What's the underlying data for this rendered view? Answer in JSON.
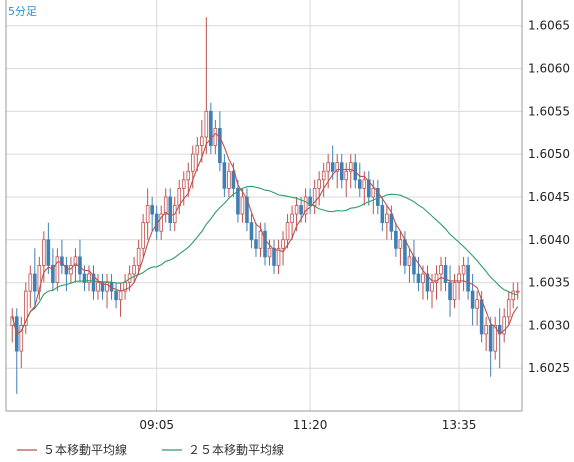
{
  "timeframe_label": "5分足",
  "colors": {
    "up": "#c0504d",
    "down": "#3f7fb5",
    "ma5": "#c0504d",
    "ma25": "#2e9e6a",
    "grid": "#d9d9d9",
    "axis": "#999999"
  },
  "chart_data": {
    "type": "candlestick",
    "ylim": [
      1.602,
      1.6068
    ],
    "yticks": [
      "1.6065",
      "1.6060",
      "1.6055",
      "1.6050",
      "1.6045",
      "1.6040",
      "1.6035",
      "1.6030",
      "1.6025"
    ],
    "xticks": [
      {
        "index": 32,
        "label": "09:05"
      },
      {
        "index": 66,
        "label": "11:20"
      },
      {
        "index": 99,
        "label": "13:35"
      }
    ],
    "candles": [
      [
        1.603,
        1.6032,
        1.6028,
        1.6031
      ],
      [
        1.6031,
        1.6032,
        1.6022,
        1.6027
      ],
      [
        1.6027,
        1.6031,
        1.6025,
        1.603
      ],
      [
        1.603,
        1.6035,
        1.6029,
        1.6034
      ],
      [
        1.6034,
        1.6037,
        1.6032,
        1.6036
      ],
      [
        1.6036,
        1.6039,
        1.6032,
        1.6034
      ],
      [
        1.6034,
        1.6038,
        1.6033,
        1.6037
      ],
      [
        1.6037,
        1.6041,
        1.6035,
        1.604
      ],
      [
        1.604,
        1.6042,
        1.6036,
        1.6037
      ],
      [
        1.6037,
        1.6039,
        1.6034,
        1.6035
      ],
      [
        1.6035,
        1.6039,
        1.6034,
        1.6038
      ],
      [
        1.6038,
        1.604,
        1.6036,
        1.6037
      ],
      [
        1.6037,
        1.6038,
        1.6034,
        1.6036
      ],
      [
        1.6036,
        1.6038,
        1.6035,
        1.6037
      ],
      [
        1.6037,
        1.6039,
        1.6035,
        1.6038
      ],
      [
        1.6038,
        1.604,
        1.6035,
        1.6036
      ],
      [
        1.6036,
        1.6037,
        1.6034,
        1.6035
      ],
      [
        1.6035,
        1.6037,
        1.6034,
        1.6036
      ],
      [
        1.6036,
        1.6037,
        1.6033,
        1.6034
      ],
      [
        1.6034,
        1.6036,
        1.6033,
        1.6035
      ],
      [
        1.6035,
        1.6036,
        1.6033,
        1.6034
      ],
      [
        1.6034,
        1.6036,
        1.6032,
        1.6035
      ],
      [
        1.6035,
        1.6036,
        1.6033,
        1.6034
      ],
      [
        1.6034,
        1.6035,
        1.6032,
        1.6033
      ],
      [
        1.6033,
        1.6035,
        1.6031,
        1.6034
      ],
      [
        1.6034,
        1.6036,
        1.6033,
        1.6035
      ],
      [
        1.6035,
        1.6037,
        1.6034,
        1.6036
      ],
      [
        1.6036,
        1.6038,
        1.6035,
        1.6037
      ],
      [
        1.6037,
        1.604,
        1.6036,
        1.6039
      ],
      [
        1.6039,
        1.6043,
        1.6038,
        1.6042
      ],
      [
        1.6042,
        1.6046,
        1.604,
        1.6044
      ],
      [
        1.6044,
        1.6045,
        1.6041,
        1.6043
      ],
      [
        1.6043,
        1.6044,
        1.604,
        1.6041
      ],
      [
        1.6041,
        1.6044,
        1.604,
        1.6043
      ],
      [
        1.6043,
        1.6046,
        1.6042,
        1.6045
      ],
      [
        1.6045,
        1.6046,
        1.6041,
        1.6042
      ],
      [
        1.6042,
        1.6045,
        1.6041,
        1.6044
      ],
      [
        1.6044,
        1.6047,
        1.6043,
        1.6046
      ],
      [
        1.6046,
        1.6048,
        1.6044,
        1.6047
      ],
      [
        1.6047,
        1.6049,
        1.6045,
        1.6048
      ],
      [
        1.6048,
        1.6051,
        1.6046,
        1.605
      ],
      [
        1.605,
        1.6052,
        1.6048,
        1.6051
      ],
      [
        1.6051,
        1.6054,
        1.6049,
        1.6052
      ],
      [
        1.6052,
        1.6066,
        1.605,
        1.6055
      ],
      [
        1.6055,
        1.6056,
        1.605,
        1.6051
      ],
      [
        1.6051,
        1.6054,
        1.605,
        1.6053
      ],
      [
        1.6053,
        1.6055,
        1.6048,
        1.6049
      ],
      [
        1.6049,
        1.605,
        1.6045,
        1.6046
      ],
      [
        1.6046,
        1.6049,
        1.6045,
        1.6048
      ],
      [
        1.6048,
        1.6049,
        1.6045,
        1.6046
      ],
      [
        1.6046,
        1.6047,
        1.6042,
        1.6043
      ],
      [
        1.6043,
        1.6046,
        1.6042,
        1.6045
      ],
      [
        1.6045,
        1.6046,
        1.6041,
        1.6042
      ],
      [
        1.6042,
        1.6043,
        1.6039,
        1.604
      ],
      [
        1.604,
        1.6042,
        1.6038,
        1.6039
      ],
      [
        1.6039,
        1.6042,
        1.6038,
        1.6041
      ],
      [
        1.6041,
        1.6042,
        1.6037,
        1.6038
      ],
      [
        1.6038,
        1.604,
        1.6037,
        1.6039
      ],
      [
        1.6039,
        1.604,
        1.6036,
        1.6037
      ],
      [
        1.6037,
        1.604,
        1.6036,
        1.6039
      ],
      [
        1.6039,
        1.6041,
        1.6037,
        1.604
      ],
      [
        1.604,
        1.6043,
        1.6039,
        1.6042
      ],
      [
        1.6042,
        1.6044,
        1.604,
        1.6043
      ],
      [
        1.6043,
        1.6045,
        1.6041,
        1.6044
      ],
      [
        1.6044,
        1.6045,
        1.6042,
        1.6043
      ],
      [
        1.6043,
        1.6046,
        1.6042,
        1.6045
      ],
      [
        1.6045,
        1.6046,
        1.6043,
        1.6044
      ],
      [
        1.6044,
        1.6047,
        1.6043,
        1.6046
      ],
      [
        1.6046,
        1.6048,
        1.6044,
        1.6047
      ],
      [
        1.6047,
        1.6049,
        1.6045,
        1.6048
      ],
      [
        1.6048,
        1.605,
        1.6046,
        1.6049
      ],
      [
        1.6049,
        1.6051,
        1.6047,
        1.6048
      ],
      [
        1.6048,
        1.605,
        1.6046,
        1.6049
      ],
      [
        1.6049,
        1.605,
        1.6046,
        1.6047
      ],
      [
        1.6047,
        1.6049,
        1.6045,
        1.6048
      ],
      [
        1.6048,
        1.605,
        1.6046,
        1.6049
      ],
      [
        1.6049,
        1.605,
        1.6046,
        1.6047
      ],
      [
        1.6047,
        1.6049,
        1.6045,
        1.6046
      ],
      [
        1.6046,
        1.6048,
        1.6044,
        1.6047
      ],
      [
        1.6047,
        1.6048,
        1.6044,
        1.6045
      ],
      [
        1.6045,
        1.6047,
        1.6043,
        1.6046
      ],
      [
        1.6046,
        1.6047,
        1.6043,
        1.6044
      ],
      [
        1.6044,
        1.6045,
        1.6041,
        1.6042
      ],
      [
        1.6042,
        1.6044,
        1.604,
        1.6043
      ],
      [
        1.6043,
        1.6044,
        1.604,
        1.6041
      ],
      [
        1.6041,
        1.6042,
        1.6038,
        1.6039
      ],
      [
        1.6039,
        1.6041,
        1.6037,
        1.604
      ],
      [
        1.604,
        1.6041,
        1.6036,
        1.6037
      ],
      [
        1.6037,
        1.6039,
        1.6035,
        1.6038
      ],
      [
        1.6038,
        1.604,
        1.6035,
        1.6036
      ],
      [
        1.6036,
        1.6038,
        1.6034,
        1.6035
      ],
      [
        1.6035,
        1.6037,
        1.6033,
        1.6036
      ],
      [
        1.6036,
        1.6037,
        1.6033,
        1.6034
      ],
      [
        1.6034,
        1.6036,
        1.6032,
        1.6035
      ],
      [
        1.6035,
        1.6037,
        1.6033,
        1.6036
      ],
      [
        1.6036,
        1.6038,
        1.6034,
        1.6037
      ],
      [
        1.6037,
        1.6038,
        1.6034,
        1.6035
      ],
      [
        1.6035,
        1.6037,
        1.6031,
        1.6033
      ],
      [
        1.6033,
        1.6036,
        1.6032,
        1.6035
      ],
      [
        1.6035,
        1.6037,
        1.6033,
        1.6036
      ],
      [
        1.6036,
        1.6038,
        1.6034,
        1.6037
      ],
      [
        1.6037,
        1.6038,
        1.6033,
        1.6034
      ],
      [
        1.6034,
        1.6036,
        1.603,
        1.6032
      ],
      [
        1.6032,
        1.6034,
        1.603,
        1.6033
      ],
      [
        1.6033,
        1.6034,
        1.6028,
        1.6029
      ],
      [
        1.6029,
        1.6031,
        1.6027,
        1.603
      ],
      [
        1.603,
        1.6031,
        1.6024,
        1.6027
      ],
      [
        1.6027,
        1.6031,
        1.6026,
        1.603
      ],
      [
        1.603,
        1.6032,
        1.6025,
        1.6029
      ],
      [
        1.6029,
        1.6032,
        1.6028,
        1.6031
      ],
      [
        1.6031,
        1.6034,
        1.603,
        1.6033
      ],
      [
        1.6033,
        1.6035,
        1.6032,
        1.6034
      ],
      [
        1.6034,
        1.6035,
        1.6033,
        1.6034
      ]
    ],
    "series": [
      {
        "name": "５本移動平均線"
      },
      {
        "name": "２５本移動平均線"
      }
    ]
  }
}
